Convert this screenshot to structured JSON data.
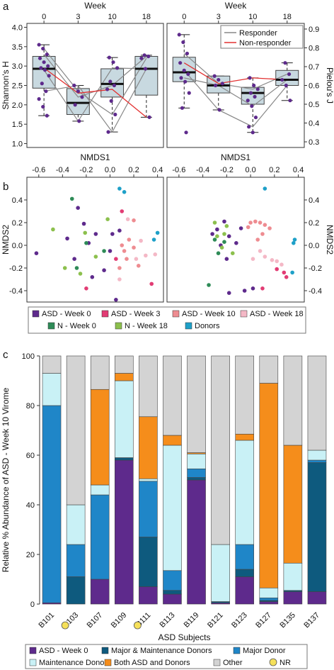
{
  "panel_labels": {
    "a": "a",
    "b": "b",
    "c": "c"
  },
  "colors": {
    "purple": "#5e2a8c",
    "pink": "#e23c74",
    "salmon": "#ee8c91",
    "lightpink": "#f4b8c6",
    "darkgreen": "#2e8b57",
    "lightgreen": "#8cc04d",
    "cyan": "#1ea0c8",
    "navy": "#0e5a7e",
    "blue": "#1f86c8",
    "lightcyan": "#c9f1f6",
    "orange": "#f58d1b",
    "grey": "#d3d3d3",
    "yellow": "#f5e05a",
    "boxfill": "#c8d9e0",
    "red": "#e23030"
  },
  "chart_data": [
    {
      "type": "box",
      "panel": "a-left",
      "xlabel_top": "Week",
      "ylabel": "Shannon's H",
      "categories": [
        "0",
        "3",
        "10",
        "18"
      ],
      "ylim": [
        0.9,
        4.1
      ],
      "yticks": [
        "1.0",
        "1.5",
        "2.0",
        "2.5",
        "3.0",
        "3.5",
        "4.0"
      ],
      "boxes": [
        {
          "q1": 2.43,
          "median": 2.93,
          "q3": 3.25,
          "wlo": 1.72,
          "whi": 3.55
        },
        {
          "q1": 1.75,
          "median": 2.05,
          "q3": 2.42,
          "wlo": 1.58,
          "whi": 2.5
        },
        {
          "q1": 2.2,
          "median": 2.54,
          "q3": 2.93,
          "wlo": 1.3,
          "whi": 3.22
        },
        {
          "q1": 2.25,
          "median": 2.93,
          "q3": 3.25,
          "wlo": 1.68,
          "whi": 3.28
        }
      ],
      "points": [
        [
          3.55,
          3.45,
          3.3,
          3.2,
          3.1,
          3.0,
          2.95,
          2.9,
          2.75,
          2.55,
          2.35,
          2.15,
          1.95,
          1.72
        ],
        [
          2.5,
          2.35,
          2.2,
          2.0,
          1.58
        ],
        [
          3.22,
          3.1,
          2.95,
          2.6,
          2.5,
          2.4,
          2.1,
          1.75,
          1.3
        ],
        [
          3.28,
          3.25,
          3.2,
          2.93,
          1.68
        ]
      ],
      "responder_lines": [
        [
          3.3,
          2.2,
          2.5,
          3.25
        ],
        [
          2.9,
          1.58,
          2.95,
          2.93
        ],
        [
          3.45,
          2.35,
          1.75,
          3.2
        ],
        [
          2.35,
          2.5,
          1.3,
          2.93
        ]
      ],
      "nonresponder_line": [
        2.95,
        2.3,
        2.4,
        1.68
      ]
    },
    {
      "type": "box",
      "panel": "a-right",
      "xlabel_top": "Week",
      "ylabel": "Pielou's J",
      "categories": [
        "0",
        "3",
        "10",
        "18"
      ],
      "ylim": [
        0.27,
        0.93
      ],
      "yticks": [
        "0.3",
        "0.4",
        "0.5",
        "0.6",
        "0.7",
        "0.8",
        "0.9"
      ],
      "boxes": [
        {
          "q1": 0.62,
          "median": 0.67,
          "q3": 0.75,
          "wlo": 0.48,
          "whi": 0.87
        },
        {
          "q1": 0.56,
          "median": 0.6,
          "q3": 0.65,
          "wlo": 0.47,
          "whi": 0.65
        },
        {
          "q1": 0.5,
          "median": 0.56,
          "q3": 0.59,
          "wlo": 0.35,
          "whi": 0.64
        },
        {
          "q1": 0.6,
          "median": 0.63,
          "q3": 0.68,
          "wlo": 0.52,
          "whi": 0.72
        }
      ],
      "points": [
        [
          0.87,
          0.83,
          0.77,
          0.72,
          0.68,
          0.66,
          0.64,
          0.62,
          0.56,
          0.48,
          0.35
        ],
        [
          0.65,
          0.63,
          0.61,
          0.6,
          0.47
        ],
        [
          0.64,
          0.6,
          0.58,
          0.56,
          0.54,
          0.52,
          0.49,
          0.43,
          0.38,
          0.35
        ],
        [
          0.72,
          0.66,
          0.63,
          0.6,
          0.52
        ]
      ],
      "responder_lines": [
        [
          0.77,
          0.61,
          0.58,
          0.66
        ],
        [
          0.68,
          0.47,
          0.38,
          0.6
        ],
        [
          0.64,
          0.6,
          0.49,
          0.63
        ]
      ],
      "nonresponder_line": [
        0.72,
        0.61,
        0.64,
        0.63
      ],
      "legend": [
        "Responder",
        "Non-responder"
      ]
    },
    {
      "type": "scatter",
      "panel": "b-left",
      "xlabel_top": "NMDS1",
      "ylabel": "NMDS2",
      "xlim": [
        -0.7,
        0.45
      ],
      "ylim": [
        -0.5,
        0.6
      ],
      "xticks": [
        "-0.6",
        "-0.4",
        "-0.2",
        "0.0",
        "0.2",
        "0.4"
      ],
      "yticks": [
        "-0.4",
        "-0.2",
        "0.0",
        "0.2",
        "0.4"
      ],
      "points": [
        {
          "g": "asd0",
          "x": -0.62,
          "y": -0.07
        },
        {
          "g": "asd0",
          "x": -0.36,
          "y": 0.06
        },
        {
          "g": "asd0",
          "x": -0.3,
          "y": -0.12
        },
        {
          "g": "asd0",
          "x": -0.22,
          "y": 0.19
        },
        {
          "g": "asd0",
          "x": -0.18,
          "y": 0.02
        },
        {
          "g": "asd0",
          "x": -0.12,
          "y": 0.1
        },
        {
          "g": "asd0",
          "x": -0.05,
          "y": -0.22
        },
        {
          "g": "asd0",
          "x": 0.02,
          "y": 0.1
        },
        {
          "g": "asd0",
          "x": 0.05,
          "y": -0.48
        },
        {
          "g": "asd0",
          "x": 0.08,
          "y": 0.13
        },
        {
          "g": "asd0",
          "x": -0.27,
          "y": 0.33
        },
        {
          "g": "asd0",
          "x": -0.15,
          "y": -0.28
        },
        {
          "g": "asd0",
          "x": 0.0,
          "y": -0.05
        },
        {
          "g": "asd3",
          "x": -0.2,
          "y": -0.38
        },
        {
          "g": "asd3",
          "x": 0.1,
          "y": 0.3
        },
        {
          "g": "asd3",
          "x": 0.35,
          "y": -0.34
        },
        {
          "g": "asd3",
          "x": 0.05,
          "y": -0.12
        },
        {
          "g": "asd10",
          "x": 0.1,
          "y": 0.0
        },
        {
          "g": "asd10",
          "x": 0.12,
          "y": -0.05
        },
        {
          "g": "asd10",
          "x": 0.16,
          "y": 0.05
        },
        {
          "g": "asd10",
          "x": 0.2,
          "y": -0.02
        },
        {
          "g": "asd10",
          "x": 0.14,
          "y": -0.12
        },
        {
          "g": "asd10",
          "x": 0.24,
          "y": -0.18
        },
        {
          "g": "asd10",
          "x": 0.08,
          "y": -0.2
        },
        {
          "g": "asd10",
          "x": 0.2,
          "y": 0.22
        },
        {
          "g": "asd18",
          "x": 0.26,
          "y": 0.04
        },
        {
          "g": "asd18",
          "x": 0.3,
          "y": -0.09
        },
        {
          "g": "asd18",
          "x": 0.38,
          "y": -0.08
        },
        {
          "g": "asd18",
          "x": 0.15,
          "y": 0.23
        },
        {
          "g": "asd18",
          "x": 0.08,
          "y": -0.3
        },
        {
          "g": "asd18",
          "x": 0.22,
          "y": -0.12
        },
        {
          "g": "n0",
          "x": -0.32,
          "y": 0.41
        },
        {
          "g": "n0",
          "x": -0.28,
          "y": -0.2
        },
        {
          "g": "n0",
          "x": -0.05,
          "y": -0.05
        },
        {
          "g": "n0",
          "x": -0.2,
          "y": 0.02
        },
        {
          "g": "n18",
          "x": -0.48,
          "y": 0.14
        },
        {
          "g": "n18",
          "x": -0.38,
          "y": -0.2
        },
        {
          "g": "n18",
          "x": -0.25,
          "y": -0.25
        },
        {
          "g": "n18",
          "x": -0.21,
          "y": 0.11
        },
        {
          "g": "n18",
          "x": -0.12,
          "y": -0.1
        },
        {
          "g": "n18",
          "x": -0.02,
          "y": 0.23
        },
        {
          "g": "donor",
          "x": 0.08,
          "y": 0.5
        },
        {
          "g": "donor",
          "x": 0.12,
          "y": 0.47
        },
        {
          "g": "donor",
          "x": 0.4,
          "y": 0.11
        },
        {
          "g": "donor",
          "x": 0.37,
          "y": 0.05
        }
      ]
    },
    {
      "type": "scatter",
      "panel": "b-right",
      "xlabel_top": "NMDS1",
      "ylabel": "NMDS2",
      "xlim": [
        -0.7,
        0.45
      ],
      "ylim": [
        -0.5,
        0.6
      ],
      "xticks": [
        "-0.6",
        "-0.4",
        "-0.2",
        "0.0",
        "0.2",
        "0.4"
      ],
      "yticks": [
        "-0.4",
        "-0.2",
        "0.0",
        "0.2",
        "0.4"
      ],
      "points": [
        {
          "g": "asd0",
          "x": -0.32,
          "y": 0.1
        },
        {
          "g": "asd0",
          "x": -0.28,
          "y": 0.14
        },
        {
          "g": "asd0",
          "x": -0.25,
          "y": 0.0
        },
        {
          "g": "asd0",
          "x": -0.22,
          "y": 0.21
        },
        {
          "g": "asd0",
          "x": -0.18,
          "y": 0.08
        },
        {
          "g": "asd0",
          "x": -0.12,
          "y": 0.02
        },
        {
          "g": "asd0",
          "x": -0.08,
          "y": 0.15
        },
        {
          "g": "asd0",
          "x": -0.2,
          "y": -0.12
        },
        {
          "g": "asd0",
          "x": -0.05,
          "y": -0.4
        },
        {
          "g": "asd0",
          "x": -0.18,
          "y": -0.42
        },
        {
          "g": "asd0",
          "x": 0.02,
          "y": -0.38
        },
        {
          "g": "asd3",
          "x": 0.1,
          "y": -0.38
        },
        {
          "g": "asd3",
          "x": 0.22,
          "y": -0.21
        },
        {
          "g": "asd3",
          "x": 0.28,
          "y": -0.24
        },
        {
          "g": "asd3",
          "x": 0.3,
          "y": -0.28
        },
        {
          "g": "asd10",
          "x": 0.0,
          "y": 0.2
        },
        {
          "g": "asd10",
          "x": 0.04,
          "y": 0.21
        },
        {
          "g": "asd10",
          "x": 0.08,
          "y": 0.2
        },
        {
          "g": "asd10",
          "x": 0.12,
          "y": 0.18
        },
        {
          "g": "asd10",
          "x": 0.16,
          "y": 0.15
        },
        {
          "g": "asd10",
          "x": 0.1,
          "y": 0.1
        },
        {
          "g": "asd10",
          "x": 0.06,
          "y": 0.05
        },
        {
          "g": "asd10",
          "x": -0.02,
          "y": 0.16
        },
        {
          "g": "asd18",
          "x": 0.08,
          "y": -0.05
        },
        {
          "g": "asd18",
          "x": 0.12,
          "y": -0.1
        },
        {
          "g": "asd18",
          "x": 0.18,
          "y": -0.13
        },
        {
          "g": "asd18",
          "x": 0.22,
          "y": -0.14
        },
        {
          "g": "asd18",
          "x": 0.26,
          "y": -0.17
        },
        {
          "g": "asd18",
          "x": 0.02,
          "y": -0.12
        },
        {
          "g": "n0",
          "x": -0.35,
          "y": -0.35
        },
        {
          "g": "n0",
          "x": -0.3,
          "y": 0.05
        },
        {
          "g": "n0",
          "x": -0.27,
          "y": -0.07
        },
        {
          "g": "n0",
          "x": -0.22,
          "y": 0.03
        },
        {
          "g": "n18",
          "x": -0.3,
          "y": 0.2
        },
        {
          "g": "n18",
          "x": -0.28,
          "y": 0.08
        },
        {
          "g": "n18",
          "x": -0.24,
          "y": -0.02
        },
        {
          "g": "n18",
          "x": -0.2,
          "y": 0.17
        },
        {
          "g": "n18",
          "x": -0.15,
          "y": -0.07
        },
        {
          "g": "n18",
          "x": -0.22,
          "y": 0.1
        },
        {
          "g": "donor",
          "x": 0.12,
          "y": 0.5
        },
        {
          "g": "donor",
          "x": 0.36,
          "y": 0.02
        },
        {
          "g": "donor",
          "x": 0.37,
          "y": 0.05
        },
        {
          "g": "donor",
          "x": 0.35,
          "y": -0.24
        }
      ]
    },
    {
      "type": "bar",
      "stacked": true,
      "panel": "c",
      "ylabel": "Relative % Abundance of ASD - Week 10 Virome",
      "xlabel": "ASD Subjects",
      "ylim": [
        0,
        100
      ],
      "yticks": [
        "0",
        "20",
        "40",
        "60",
        "80",
        "100"
      ],
      "categories": [
        "B101",
        "B103",
        "B107",
        "B109",
        "B111",
        "B113",
        "B119",
        "B121",
        "B123",
        "B127",
        "B135",
        "B137"
      ],
      "nr": [
        false,
        true,
        false,
        false,
        true,
        false,
        false,
        false,
        false,
        false,
        false,
        false
      ],
      "series": [
        {
          "name": "ASD - Week 0",
          "key": "purple",
          "values": [
            0.5,
            0,
            10,
            58,
            7,
            4,
            50,
            0.5,
            11,
            1,
            5,
            5
          ]
        },
        {
          "name": "Major & Maintenance Donors",
          "key": "navy",
          "values": [
            0,
            11,
            0,
            1,
            20,
            1.5,
            1,
            0.5,
            3,
            0.5,
            0.5,
            52
          ]
        },
        {
          "name": "Major Donor",
          "key": "blue",
          "values": [
            79.5,
            13,
            34,
            0,
            22.5,
            8,
            3.5,
            0,
            10,
            1,
            0,
            1
          ]
        },
        {
          "name": "Maintenance Donor",
          "key": "lightcyan",
          "values": [
            13,
            16,
            4,
            31,
            1,
            50.5,
            6,
            23,
            42,
            4,
            11,
            4
          ]
        },
        {
          "name": "Both ASD and Donors",
          "key": "orange",
          "values": [
            0,
            0,
            38.5,
            3,
            25,
            4,
            0.5,
            0,
            2.5,
            82.5,
            47.5,
            0
          ]
        },
        {
          "name": "Other",
          "key": "grey",
          "values": [
            7,
            60,
            13.5,
            7,
            24.5,
            32,
            39,
            76,
            31.5,
            11,
            36,
            38
          ]
        }
      ],
      "legend_nr": "NR"
    }
  ],
  "legend_b": [
    "ASD - Week 0",
    "ASD - Week 3",
    "ASD - Week 10",
    "ASD - Week 18",
    "N - Week 0",
    "N - Week 18",
    "Donors"
  ],
  "legend_b_colors": [
    "purple",
    "pink",
    "salmon",
    "lightpink",
    "darkgreen",
    "lightgreen",
    "cyan"
  ],
  "group_colors": {
    "asd0": "purple",
    "asd3": "pink",
    "asd10": "salmon",
    "asd18": "lightpink",
    "n0": "darkgreen",
    "n18": "lightgreen",
    "donor": "cyan"
  }
}
